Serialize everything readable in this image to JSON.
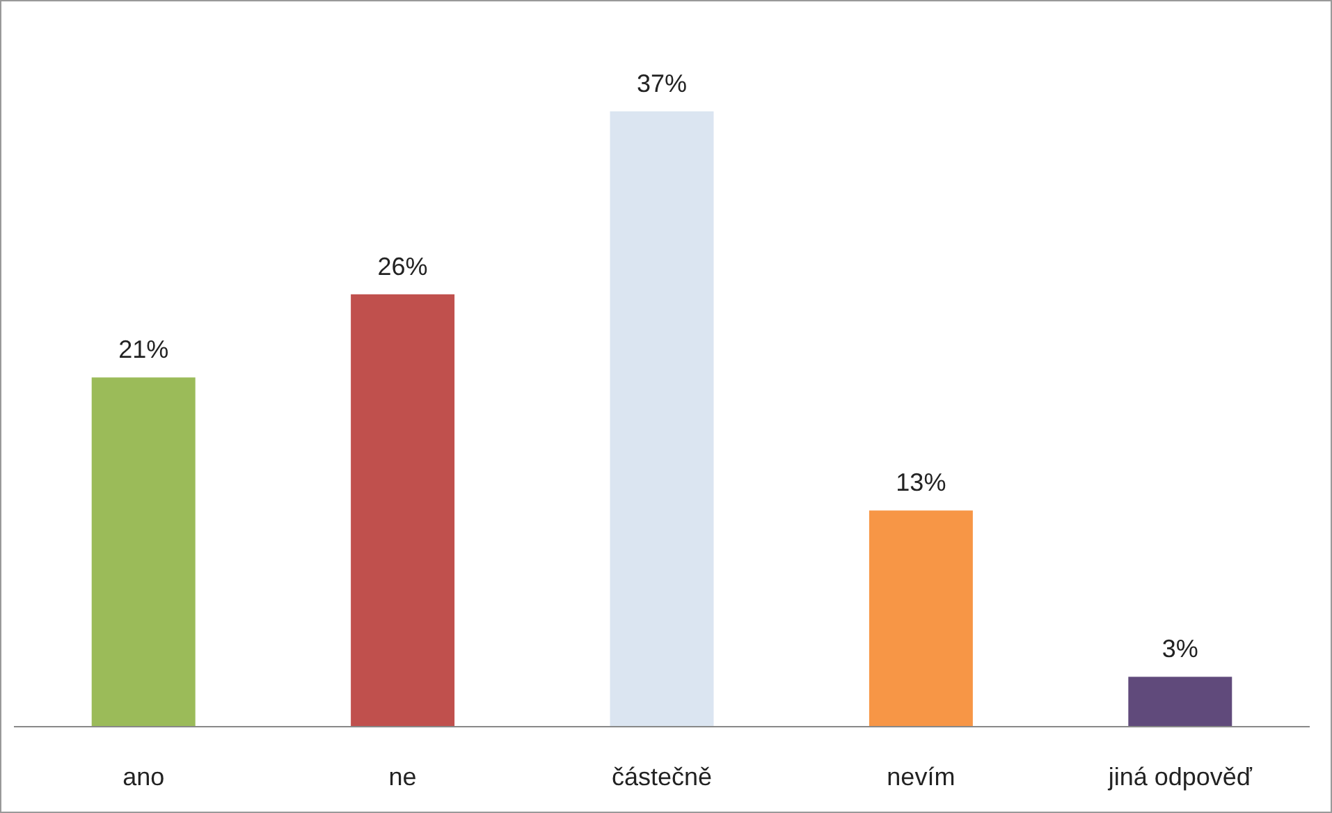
{
  "chart_data": {
    "type": "bar",
    "categories": [
      "ano",
      "ne",
      "částečně",
      "nevím",
      "jiná odpověď"
    ],
    "values": [
      21,
      26,
      37,
      13,
      3
    ],
    "colors": [
      "#9bbb59",
      "#c0504d",
      "#dbe5f1",
      "#f79646",
      "#604a7b"
    ],
    "value_labels": [
      "21%",
      "26%",
      "37%",
      "13%",
      "3%"
    ]
  }
}
